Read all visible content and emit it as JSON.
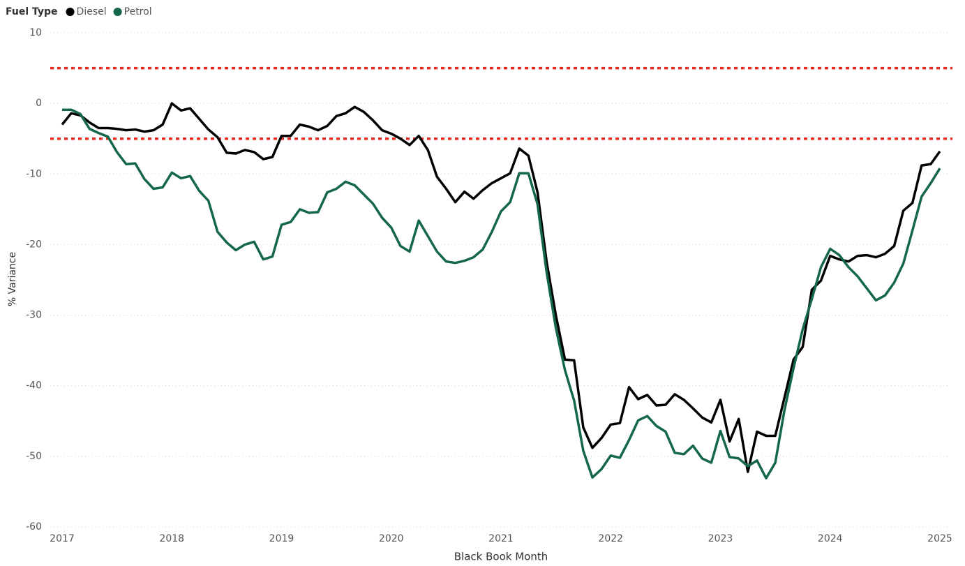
{
  "chart_data": {
    "type": "line",
    "legend_title": "Fuel Type",
    "x_label": "Black Book Month",
    "y_label": "% Variance",
    "categories": [
      "2017",
      null,
      null,
      null,
      null,
      null,
      null,
      null,
      null,
      null,
      null,
      null,
      "2018",
      null,
      null,
      null,
      null,
      null,
      null,
      null,
      null,
      null,
      null,
      null,
      "2019",
      null,
      null,
      null,
      null,
      null,
      null,
      null,
      null,
      null,
      null,
      null,
      "2020",
      null,
      null,
      null,
      null,
      null,
      null,
      null,
      null,
      null,
      null,
      null,
      "2021",
      null,
      null,
      null,
      null,
      null,
      null,
      null,
      null,
      null,
      null,
      null,
      "2022",
      null,
      null,
      null,
      null,
      null,
      null,
      null,
      null,
      null,
      null,
      null,
      "2023",
      null,
      null,
      null,
      null,
      null,
      null,
      null,
      null,
      null,
      null,
      null,
      "2024",
      null,
      null,
      null,
      null,
      null,
      null,
      null,
      null,
      null,
      null,
      null,
      "2025"
    ],
    "series": [
      {
        "name": "Diesel",
        "color": "#000000",
        "values": [
          -3,
          -1.4,
          -1.7,
          -2.7,
          -3.5,
          -3.5,
          -3.6,
          -3.8,
          -3.7,
          -4,
          -3.8,
          -3,
          0,
          -1,
          -0.7,
          -2.2,
          -3.7,
          -4.8,
          -7,
          -7.1,
          -6.6,
          -6.9,
          -7.9,
          -7.6,
          -4.6,
          -4.6,
          -3,
          -3.3,
          -3.8,
          -3.2,
          -1.8,
          -1.4,
          -0.5,
          -1.2,
          -2.4,
          -3.8,
          -4.3,
          -5,
          -5.9,
          -4.6,
          -6.6,
          -10.4,
          -12.1,
          -14,
          -12.5,
          -13.5,
          -12.3,
          -11.3,
          -10.6,
          -9.9,
          -6.4,
          -7.4,
          -12.6,
          -22.5,
          -30,
          -36.3,
          -36.4,
          -45.9,
          -48.8,
          -47.4,
          -45.5,
          -45.3,
          -40.2,
          -41.9,
          -41.3,
          -42.8,
          -42.7,
          -41.2,
          -42,
          -43.2,
          -44.5,
          -45.2,
          -42,
          -47.9,
          -44.7,
          -52.2,
          -46.5,
          -47.1,
          -47.1,
          -41.7,
          -36.3,
          -34.5,
          -26.4,
          -25.1,
          -21.6,
          -22.1,
          -22.4,
          -21.6,
          -21.5,
          -21.8,
          -21.3,
          -20.2,
          -15.2,
          -14.1,
          -8.8,
          -8.6,
          -6.8
        ]
      },
      {
        "name": "Petrol",
        "color": "#15674a",
        "values": [
          -0.9,
          -0.9,
          -1.5,
          -3.6,
          -4.2,
          -4.7,
          -6.9,
          -8.6,
          -8.5,
          -10.7,
          -12.1,
          -11.9,
          -9.8,
          -10.6,
          -10.3,
          -12.4,
          -13.8,
          -18.2,
          -19.7,
          -20.8,
          -20,
          -19.6,
          -22.1,
          -21.7,
          -17.2,
          -16.8,
          -15,
          -15.5,
          -15.4,
          -12.6,
          -12.1,
          -11.1,
          -11.6,
          -12.9,
          -14.2,
          -16.2,
          -17.6,
          -20.2,
          -21,
          -16.6,
          -18.8,
          -21,
          -22.4,
          -22.6,
          -22.3,
          -21.8,
          -20.7,
          -18.2,
          -15.3,
          -14,
          -9.9,
          -9.9,
          -14.3,
          -24,
          -31.8,
          -37.8,
          -42.1,
          -49.2,
          -53,
          -51.8,
          -49.9,
          -50.2,
          -47.7,
          -44.9,
          -44.3,
          -45.7,
          -46.5,
          -49.5,
          -49.7,
          -48.5,
          -50.3,
          -50.9,
          -46.4,
          -50.1,
          -50.3,
          -51.4,
          -50.6,
          -53.1,
          -50.9,
          -43.5,
          -37.5,
          -32,
          -27.7,
          -23.2,
          -20.6,
          -21.5,
          -23.2,
          -24.5,
          -26.2,
          -27.9,
          -27.2,
          -25.4,
          -22.7,
          -18,
          -13.2,
          -11.3,
          -9.2
        ]
      }
    ],
    "ylim": [
      -60,
      10
    ],
    "yticks": [
      10,
      0,
      -10,
      -20,
      -30,
      -40,
      -50,
      -60
    ],
    "grid": true,
    "reference_lines": [
      5,
      -5
    ],
    "reference_color": "#e8291c",
    "legend_position": "top-left"
  }
}
